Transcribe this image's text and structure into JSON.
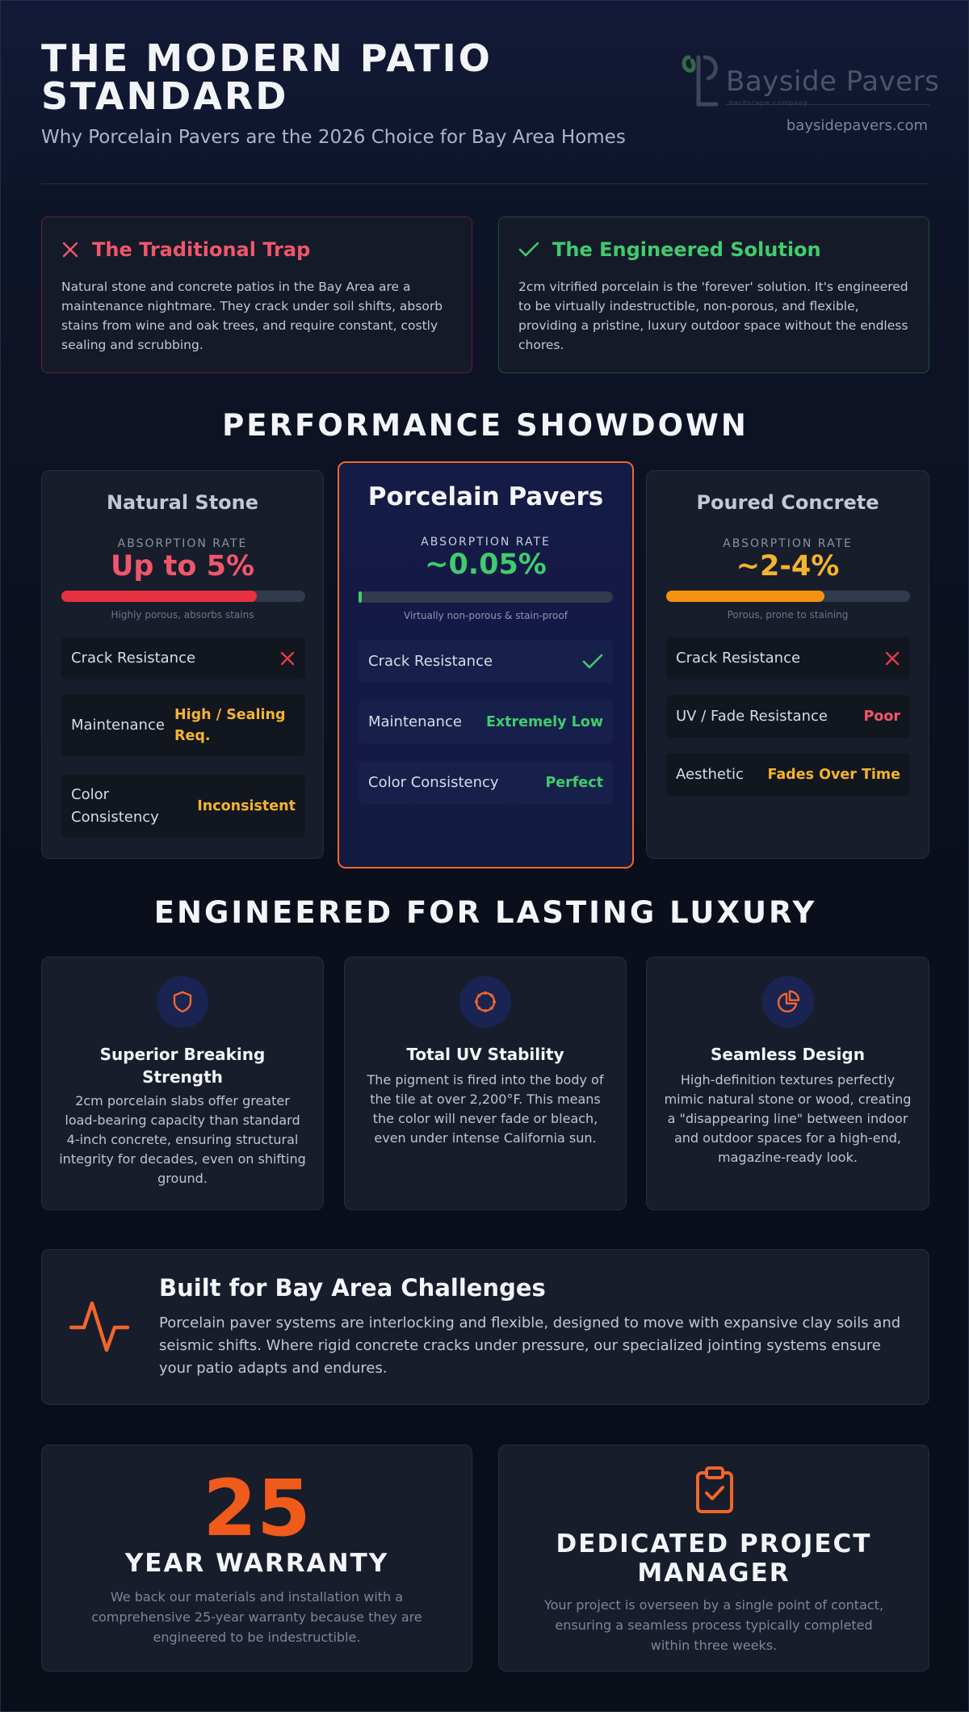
{
  "header": {
    "title": "THE MODERN PATIO STANDARD",
    "subtitle": "Why Porcelain Pavers are the 2026 Choice for Bay Area Homes",
    "logo_name": "Bayside Pavers",
    "logo_tagline": "hardscape company",
    "website": "baysidepavers.com"
  },
  "trap": {
    "icon": "close-icon",
    "title": "The Traditional Trap",
    "text": "Natural stone and concrete patios in the Bay Area are a maintenance nightmare. They crack under soil shifts, absorb stains from wine and oak trees, and require constant, costly sealing and scrubbing."
  },
  "solution": {
    "icon": "check-icon",
    "title": "The Engineered Solution",
    "text": "2cm vitrified porcelain is the 'forever' solution. It's engineered to be virtually indestructible, non-porous, and flexible, providing a pristine, luxury outdoor space without the endless chores."
  },
  "showdown": {
    "title": "PERFORMANCE SHOWDOWN",
    "absorption_label": "ABSORPTION RATE",
    "stone": {
      "name": "Natural Stone",
      "rate": "Up to 5%",
      "bar_fill_fraction": 0.8,
      "bar_color": "#e8323f",
      "note": "Highly porous, absorbs stains",
      "rows": [
        {
          "label": "Crack Resistance",
          "value": "✕",
          "color": "#f0566b"
        },
        {
          "label": "Maintenance",
          "value": "High / Sealing Req.",
          "color": "#f5b42d"
        },
        {
          "label": "Color Consistency",
          "value": "Inconsistent",
          "color": "#f5b42d"
        }
      ]
    },
    "porcelain": {
      "name": "Porcelain Pavers",
      "rate": "~0.05%",
      "bar_fill_fraction": 0.01,
      "bar_color": "#3fcc6e",
      "note": "Virtually non-porous & stain-proof",
      "rows": [
        {
          "label": "Crack Resistance",
          "value": "✓",
          "color": "#3fcc6e"
        },
        {
          "label": "Maintenance",
          "value": "Extremely Low",
          "color": "#3fcc6e"
        },
        {
          "label": "Color Consistency",
          "value": "Perfect",
          "color": "#3fcc6e"
        }
      ]
    },
    "concrete": {
      "name": "Poured Concrete",
      "rate": "~2-4%",
      "bar_fill_fraction": 0.65,
      "bar_color": "#f5920f",
      "note": "Porous, prone to staining",
      "rows": [
        {
          "label": "Crack Resistance",
          "value": "✕",
          "color": "#f0566b"
        },
        {
          "label": "UV / Fade Resistance",
          "value": "Poor",
          "color": "#f0566b"
        },
        {
          "label": "Aesthetic",
          "value": "Fades Over Time",
          "color": "#f5b42d"
        }
      ]
    }
  },
  "luxury": {
    "title": "ENGINEERED FOR LASTING LUXURY",
    "features": [
      {
        "icon": "shield-icon",
        "title": "Superior Breaking Strength",
        "text": "2cm porcelain slabs offer greater load-bearing capacity than standard 4-inch concrete, ensuring structural integrity for decades, even on shifting ground."
      },
      {
        "icon": "sun-icon",
        "title": "Total UV Stability",
        "text": "The pigment is fired into the body of the tile at over 2,200°F. This means the color will never fade or bleach, even under intense California sun."
      },
      {
        "icon": "pie-chart-icon",
        "title": "Seamless Design",
        "text": "High-definition textures perfectly mimic natural stone or wood, creating a \"disappearing line\" between indoor and outdoor spaces for a high-end, magazine-ready look."
      }
    ]
  },
  "bay_area": {
    "icon": "activity-icon",
    "title": "Built for Bay Area Challenges",
    "text": "Porcelain paver systems are interlocking and flexible, designed to move with expansive clay soils and seismic shifts. Where rigid concrete cracks under pressure, our specialized jointing systems ensure your patio adapts and endures."
  },
  "warranty": {
    "number": "25",
    "title": "YEAR WARRANTY",
    "text": "We back our materials and installation with a comprehensive 25-year warranty because they are engineered to be indestructible."
  },
  "project_manager": {
    "icon": "clipboard-check-icon",
    "title": "DEDICATED PROJECT MANAGER",
    "text": "Your project is overseen by a single point of contact, ensuring a seamless process typically completed within three weeks."
  },
  "colors": {
    "accent": "#f05a1a",
    "red": "#f0566b",
    "green": "#3fcc6e",
    "amber": "#f5b42d"
  }
}
